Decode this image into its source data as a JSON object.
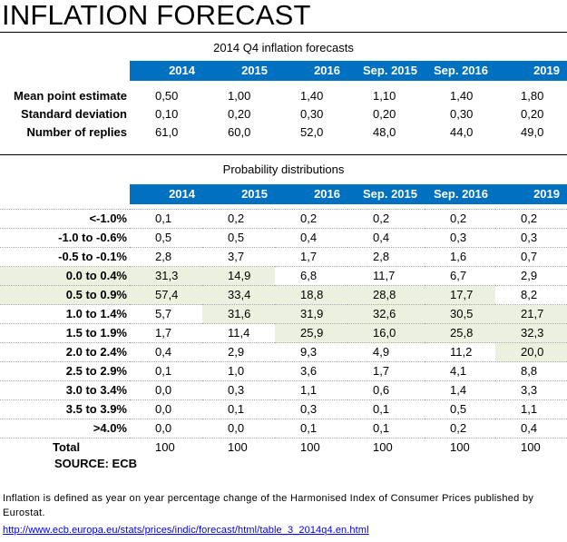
{
  "title": "INFLATION FORECAST",
  "section1": {
    "caption": "2014 Q4 inflation forecasts",
    "columns": [
      "2014",
      "2015",
      "2016",
      "Sep. 2015",
      "Sep. 2016",
      "2019"
    ],
    "rows": [
      {
        "label": "Mean point estimate",
        "values": [
          "0,50",
          "1,00",
          "1,40",
          "1,10",
          "1,40",
          "1,80"
        ]
      },
      {
        "label": "Standard deviation",
        "values": [
          "0,10",
          "0,20",
          "0,30",
          "0,20",
          "0,30",
          "0,20"
        ]
      },
      {
        "label": "Number of replies",
        "values": [
          "61,0",
          "60,0",
          "52,0",
          "48,0",
          "44,0",
          "49,0"
        ]
      }
    ]
  },
  "section2": {
    "caption": "Probability distributions",
    "columns": [
      "2014",
      "2015",
      "2016",
      "Sep. 2015",
      "Sep. 2016",
      "2019"
    ],
    "rows": [
      {
        "label": "<-1.0%",
        "values": [
          "0,1",
          "0,2",
          "0,2",
          "0,2",
          "0,2",
          "0,2"
        ]
      },
      {
        "label": "-1.0 to -0.6%",
        "values": [
          "0,5",
          "0,5",
          "0,4",
          "0,4",
          "0,3",
          "0,3"
        ]
      },
      {
        "label": "-0.5 to -0.1%",
        "values": [
          "2,8",
          "3,7",
          "1,7",
          "2,8",
          "1,6",
          "0,7"
        ]
      },
      {
        "label": "0.0 to 0.4%",
        "values": [
          "31,3",
          "14,9",
          "6,8",
          "11,7",
          "6,7",
          "2,9"
        ]
      },
      {
        "label": "0.5 to 0.9%",
        "values": [
          "57,4",
          "33,4",
          "18,8",
          "28,8",
          "17,7",
          "8,2"
        ]
      },
      {
        "label": "1.0 to 1.4%",
        "values": [
          "5,7",
          "31,6",
          "31,9",
          "32,6",
          "30,5",
          "21,7"
        ]
      },
      {
        "label": "1.5 to 1.9%",
        "values": [
          "1,7",
          "11,4",
          "25,9",
          "16,0",
          "25,8",
          "32,3"
        ]
      },
      {
        "label": "2.0 to 2.4%",
        "values": [
          "0,4",
          "2,9",
          "9,3",
          "4,9",
          "11,2",
          "20,0"
        ]
      },
      {
        "label": "2.5 to 2.9%",
        "values": [
          "0,1",
          "1,0",
          "3,6",
          "1,7",
          "4,1",
          "8,8"
        ]
      },
      {
        "label": "3.0 to 3.4%",
        "values": [
          "0,0",
          "0,3",
          "1,1",
          "0,6",
          "1,4",
          "3,3"
        ]
      },
      {
        "label": "3.5 to 3.9%",
        "values": [
          "0,0",
          "0,1",
          "0,3",
          "0,1",
          "0,5",
          "1,1"
        ]
      },
      {
        "label": ">4.0%",
        "values": [
          "0,0",
          "0,0",
          "0,1",
          "0,1",
          "0,2",
          "0,4"
        ]
      }
    ],
    "total": {
      "label": "Total",
      "values": [
        "100",
        "100",
        "100",
        "100",
        "100",
        "100"
      ]
    }
  },
  "source": "SOURCE: ECB",
  "note": "Inflation is defined as year on year percentage change of the Harmonised Index of Consumer Prices published by Eurostat.",
  "link": "http://www.ecb.europa.eu/stats/prices/indic/forecast/html/table_3_2014q4.en.html"
}
